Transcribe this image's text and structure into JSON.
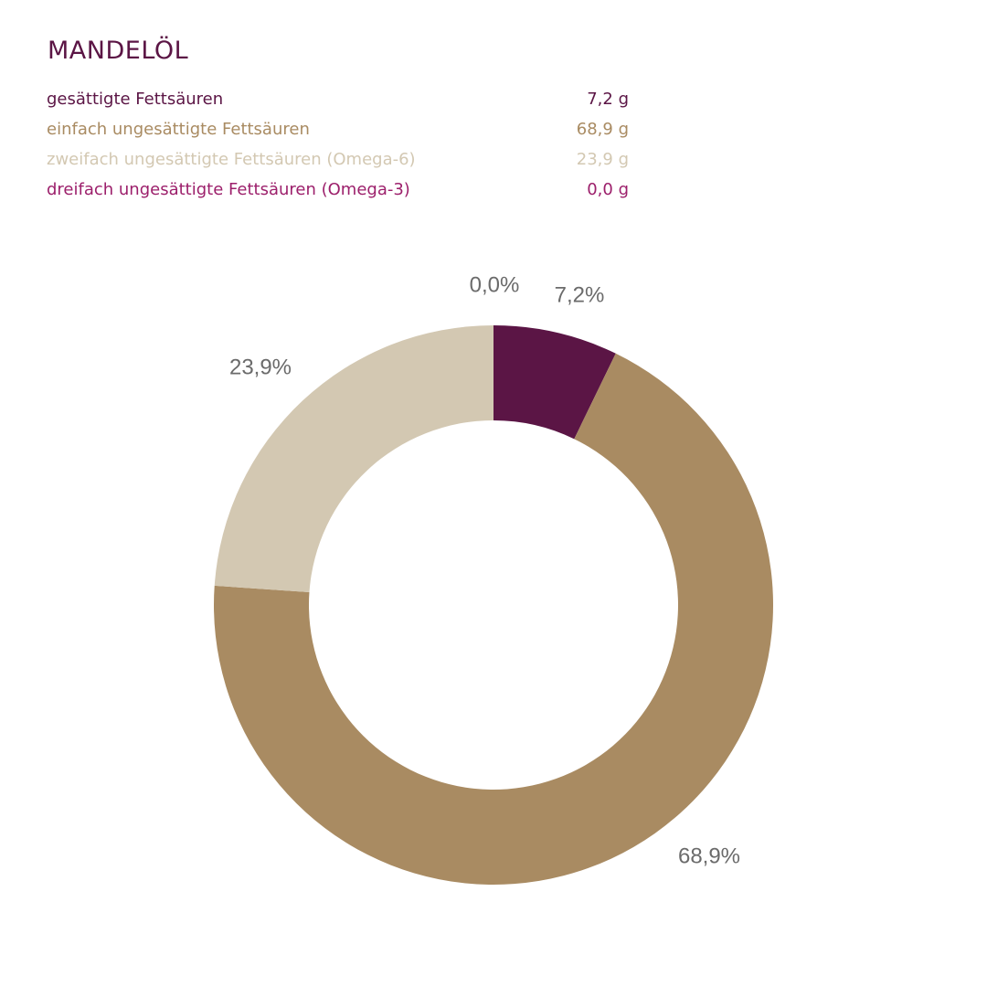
{
  "title": "MANDELÖL",
  "legend": [
    {
      "label": "gesättigte Fettsäuren",
      "value": "7,2 g",
      "color": "#5b1545"
    },
    {
      "label": "einfach ungesättigte Fettsäuren",
      "value": "68,9 g",
      "color": "#a98b62"
    },
    {
      "label": "zweifach ungesättigte Fettsäuren (Omega-6)",
      "value": "23,9 g",
      "color": "#d3c8b2"
    },
    {
      "label": "dreifach ungesättigte Fettsäuren (Omega-3)",
      "value": "0,0 g",
      "color": "#9c1f6b"
    }
  ],
  "chart_data": {
    "type": "pie",
    "style": "donut",
    "slices": [
      {
        "name": "gesättigte Fettsäuren",
        "value": 7.2,
        "label": "7,2%",
        "color": "#5b1545"
      },
      {
        "name": "einfach ungesättigte Fettsäuren",
        "value": 68.9,
        "label": "68,9%",
        "color": "#a98b62"
      },
      {
        "name": "zweifach ungesättigte Fettsäuren (Omega-6)",
        "value": 23.9,
        "label": "23,9%",
        "color": "#d3c8b2"
      },
      {
        "name": "dreifach ungesättigte Fettsäuren (Omega-3)",
        "value": 0.0,
        "label": "0,0%",
        "color": "#9c1f6b"
      }
    ]
  }
}
